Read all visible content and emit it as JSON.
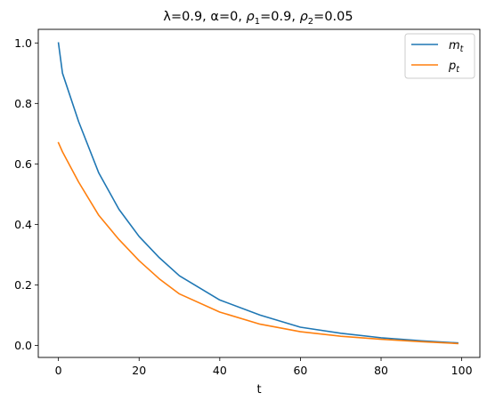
{
  "chart_data": {
    "type": "line",
    "title": "λ=0.9, α=0, ρ₁=0.9, ρ₂=0.05",
    "title_parts": {
      "prefix": "λ=0.9, α=0, ",
      "rho": "ρ",
      "sub1": "1",
      "mid": "=0.9, ",
      "sub2": "2",
      "suffix": "=0.05"
    },
    "xlabel": "t",
    "ylabel": "",
    "xlim": [
      -5,
      104.5
    ],
    "ylim": [
      -0.04,
      1.045
    ],
    "xticks": [
      0,
      20,
      40,
      60,
      80,
      100
    ],
    "xtick_labels": [
      "0",
      "20",
      "40",
      "60",
      "80",
      "100"
    ],
    "yticks": [
      0.0,
      0.2,
      0.4,
      0.6,
      0.8,
      1.0
    ],
    "ytick_labels": [
      "0.0",
      "0.2",
      "0.4",
      "0.6",
      "0.8",
      "1.0"
    ],
    "grid": false,
    "legend_position": "upper right",
    "x": [
      0,
      1,
      5,
      10,
      15,
      20,
      25,
      30,
      40,
      50,
      60,
      70,
      80,
      90,
      99
    ],
    "series": [
      {
        "name": "m_t",
        "label_base": "m",
        "label_sub": "t",
        "color": "#1f77b4",
        "values": [
          1.0,
          0.9,
          0.74,
          0.57,
          0.45,
          0.36,
          0.29,
          0.23,
          0.15,
          0.1,
          0.06,
          0.04,
          0.025,
          0.015,
          0.008
        ]
      },
      {
        "name": "p_t",
        "label_base": "p",
        "label_sub": "t",
        "color": "#ff7f0e",
        "values": [
          0.67,
          0.64,
          0.54,
          0.43,
          0.35,
          0.28,
          0.22,
          0.17,
          0.11,
          0.07,
          0.045,
          0.03,
          0.02,
          0.012,
          0.006
        ]
      }
    ]
  }
}
